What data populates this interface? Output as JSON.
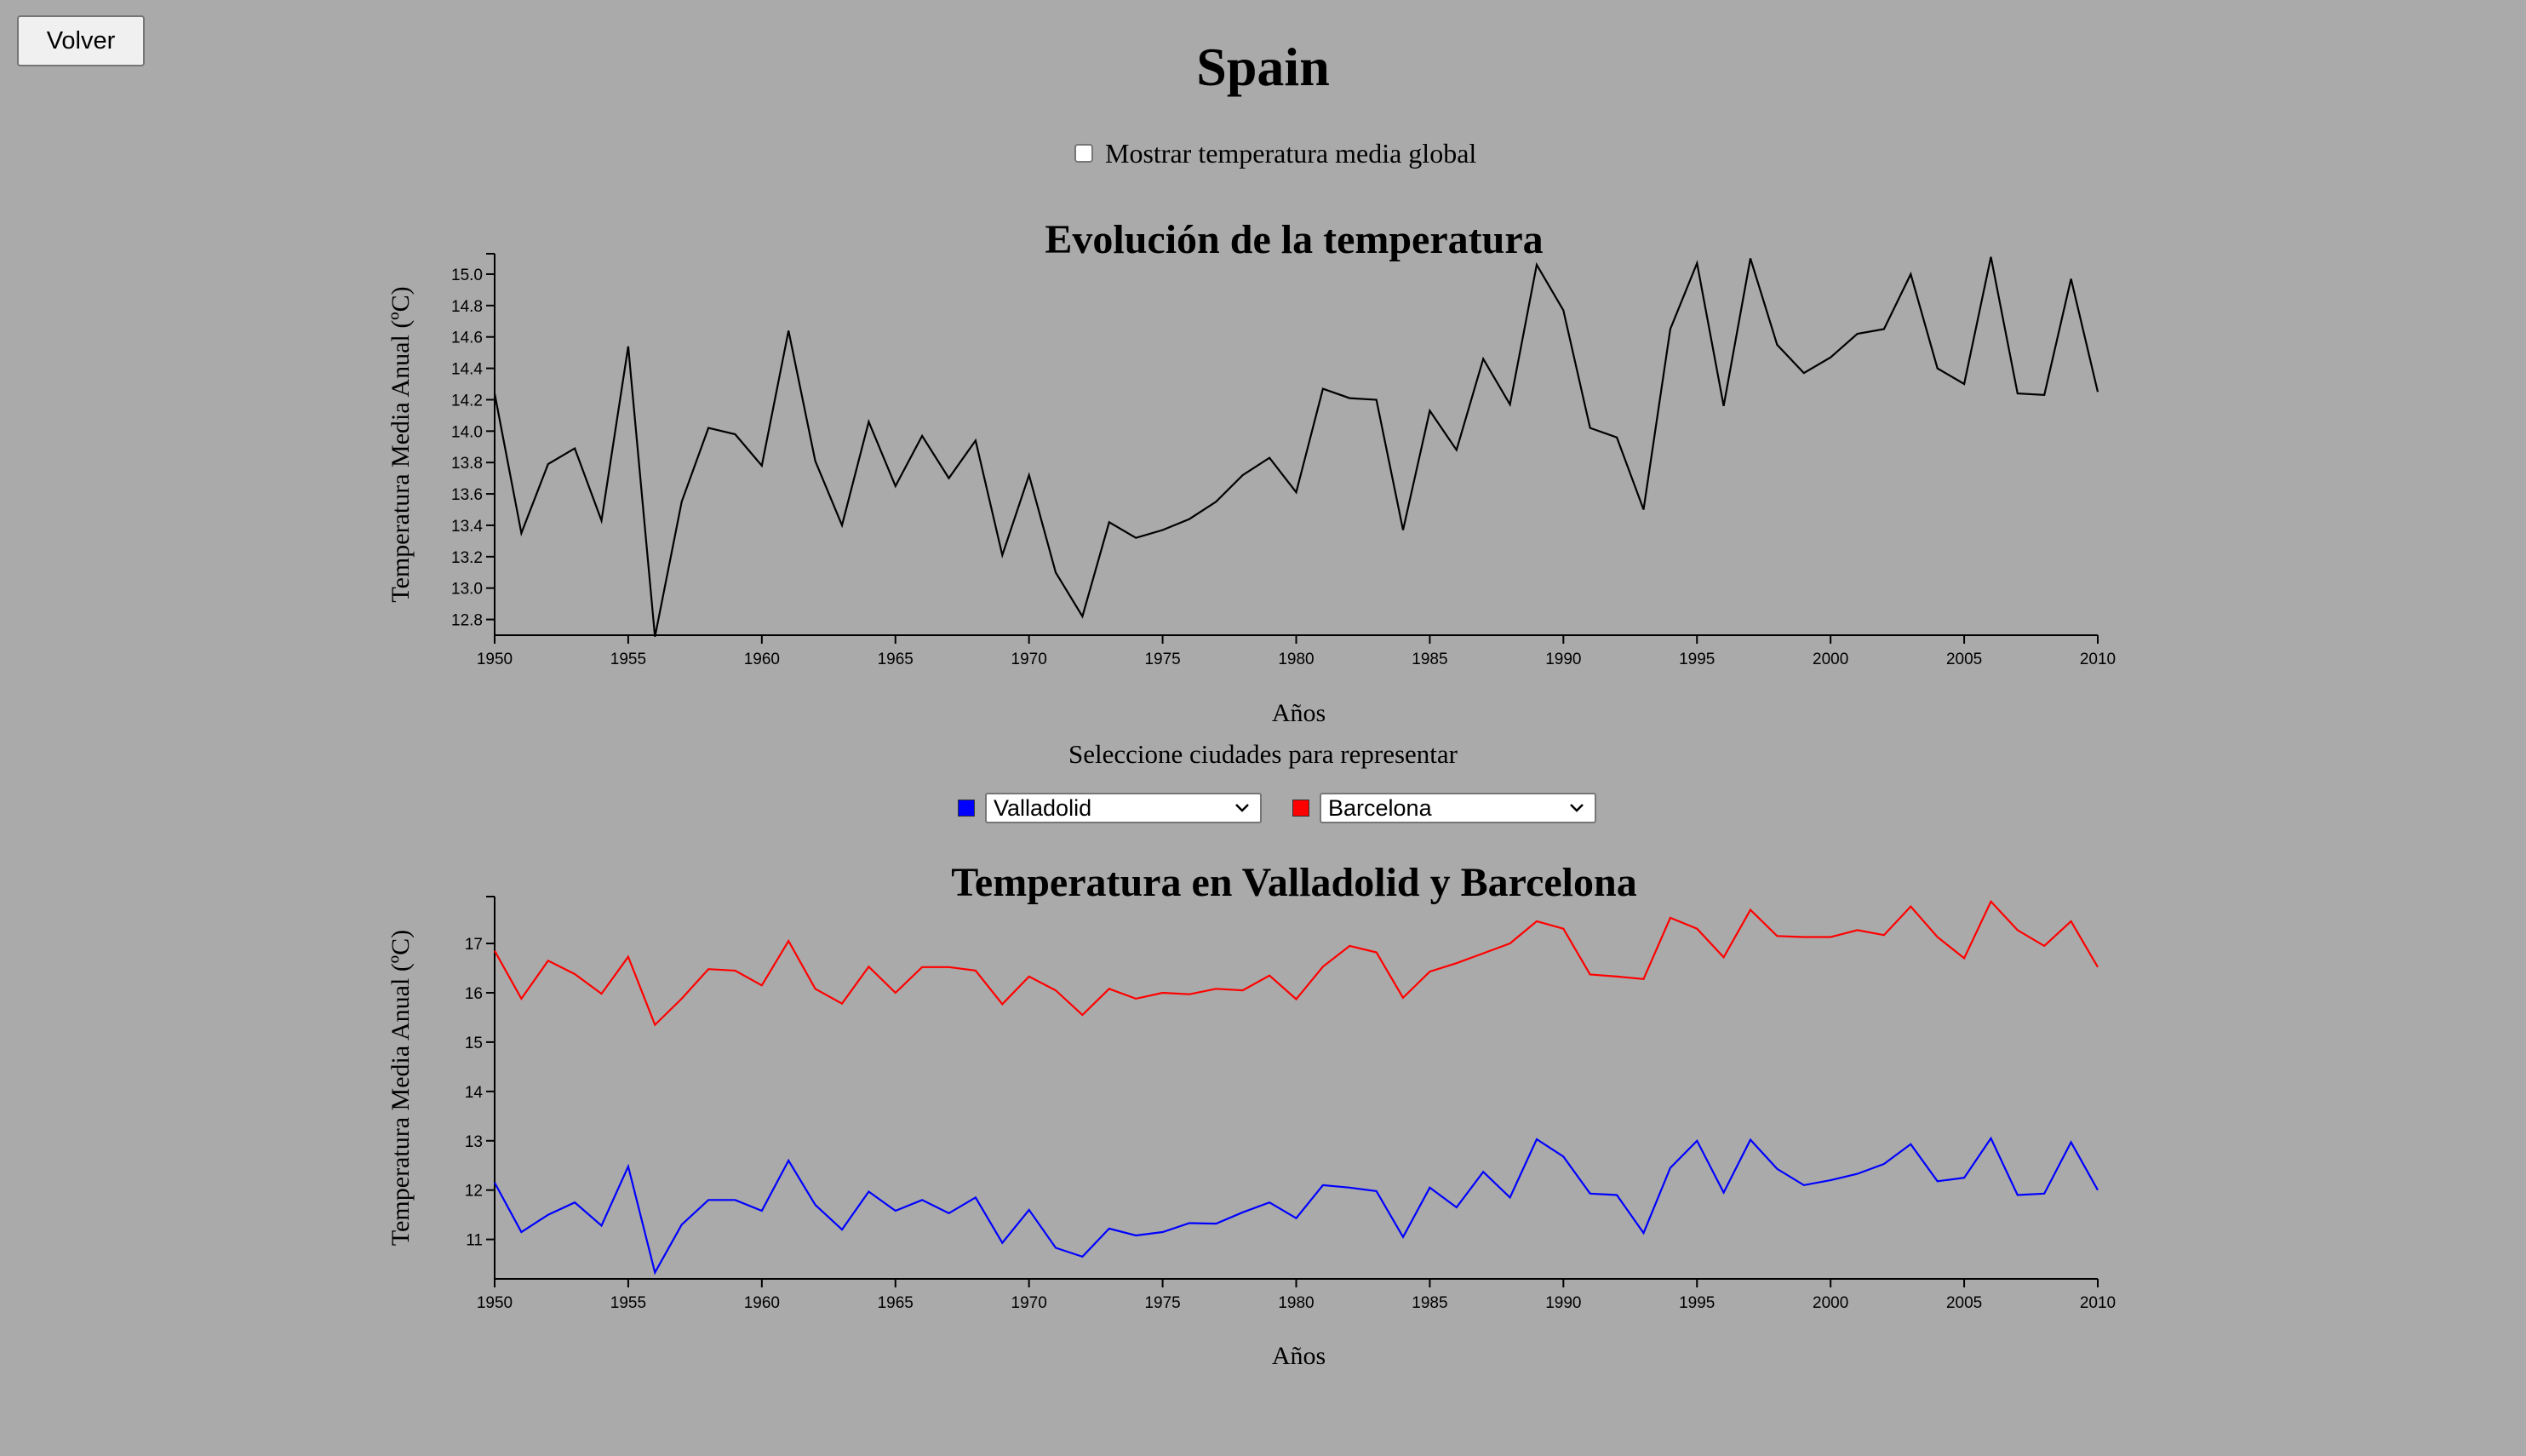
{
  "header": {
    "back_label": "Volver",
    "title": "Spain",
    "global_toggle_label": "Mostrar temperatura media global",
    "global_toggle_checked": false
  },
  "city_picker": {
    "prompt": "Seleccione ciudades para representar",
    "cities": [
      {
        "value": "Valladolid",
        "color": "#0000ff"
      },
      {
        "value": "Barcelona",
        "color": "#ff0000"
      }
    ]
  },
  "colors": {
    "background": "#aaaaaa",
    "country_line": "#000000"
  },
  "icons": {
    "select_arrow": "chevron-down-icon",
    "checkbox": "checkbox-icon"
  },
  "chart_data": [
    {
      "type": "line",
      "title": "Evolución de la temperatura",
      "xlabel": "Años",
      "ylabel": "Temperatura Media Anual (ºC)",
      "xlim": [
        1950,
        2010
      ],
      "ylim": [
        12.7,
        15.13
      ],
      "xticks": [
        1950,
        1955,
        1960,
        1965,
        1970,
        1975,
        1980,
        1985,
        1990,
        1995,
        2000,
        2005,
        2010
      ],
      "yticks": [
        12.8,
        13.0,
        13.2,
        13.4,
        13.6,
        13.8,
        14.0,
        14.2,
        14.4,
        14.6,
        14.8,
        15.0
      ],
      "ytick_decimals": 1,
      "x": [
        1950,
        1951,
        1952,
        1953,
        1954,
        1955,
        1956,
        1957,
        1958,
        1959,
        1960,
        1961,
        1962,
        1963,
        1964,
        1965,
        1966,
        1967,
        1968,
        1969,
        1970,
        1971,
        1972,
        1973,
        1974,
        1975,
        1976,
        1977,
        1978,
        1979,
        1980,
        1981,
        1982,
        1983,
        1984,
        1985,
        1986,
        1987,
        1988,
        1989,
        1990,
        1991,
        1992,
        1993,
        1994,
        1995,
        1996,
        1997,
        1998,
        1999,
        2000,
        2001,
        2002,
        2003,
        2004,
        2005,
        2006,
        2007,
        2008,
        2009,
        2010
      ],
      "series": [
        {
          "color": "#000000",
          "values": [
            14.24,
            13.35,
            13.79,
            13.89,
            13.43,
            14.54,
            12.69,
            13.55,
            14.02,
            13.98,
            13.78,
            14.64,
            13.81,
            13.4,
            14.06,
            13.65,
            13.97,
            13.7,
            13.94,
            13.21,
            13.72,
            13.1,
            12.82,
            13.42,
            13.32,
            13.37,
            13.44,
            13.55,
            13.72,
            13.83,
            13.61,
            14.27,
            14.21,
            14.2,
            13.37,
            14.13,
            13.88,
            14.46,
            14.17,
            15.06,
            14.77,
            14.02,
            13.96,
            13.5,
            14.65,
            15.07,
            14.16,
            15.1,
            14.55,
            14.37,
            14.47,
            14.62,
            14.65,
            15.0,
            14.4,
            14.3,
            15.11,
            14.24,
            14.23,
            14.97,
            14.25
          ]
        }
      ]
    },
    {
      "type": "line",
      "title": "Temperatura en Valladolid y Barcelona",
      "xlabel": "Años",
      "ylabel": "Temperatura Media Anual (ºC)",
      "xlim": [
        1950,
        2010
      ],
      "ylim": [
        10.2,
        17.95
      ],
      "xticks": [
        1950,
        1955,
        1960,
        1965,
        1970,
        1975,
        1980,
        1985,
        1990,
        1995,
        2000,
        2005,
        2010
      ],
      "yticks": [
        11,
        12,
        13,
        14,
        15,
        16,
        17
      ],
      "ytick_decimals": 0,
      "x": [
        1950,
        1951,
        1952,
        1953,
        1954,
        1955,
        1956,
        1957,
        1958,
        1959,
        1960,
        1961,
        1962,
        1963,
        1964,
        1965,
        1966,
        1967,
        1968,
        1969,
        1970,
        1971,
        1972,
        1973,
        1974,
        1975,
        1976,
        1977,
        1978,
        1979,
        1980,
        1981,
        1982,
        1983,
        1984,
        1985,
        1986,
        1987,
        1988,
        1989,
        1990,
        1991,
        1992,
        1993,
        1994,
        1995,
        1996,
        1997,
        1998,
        1999,
        2000,
        2001,
        2002,
        2003,
        2004,
        2005,
        2006,
        2007,
        2008,
        2009,
        2010
      ],
      "series": [
        {
          "name": "Valladolid",
          "color": "#0000ff",
          "values": [
            12.15,
            11.15,
            11.5,
            11.75,
            11.28,
            12.48,
            10.33,
            11.3,
            11.8,
            11.8,
            11.58,
            12.6,
            11.7,
            11.2,
            11.97,
            11.58,
            11.8,
            11.53,
            11.85,
            10.93,
            11.6,
            10.83,
            10.65,
            11.22,
            11.08,
            11.15,
            11.33,
            11.32,
            11.55,
            11.75,
            11.43,
            12.1,
            12.05,
            11.98,
            11.05,
            12.05,
            11.65,
            12.37,
            11.85,
            13.03,
            12.68,
            11.93,
            11.9,
            11.13,
            12.45,
            13.0,
            11.95,
            13.02,
            12.43,
            12.1,
            12.2,
            12.33,
            12.53,
            12.93,
            12.18,
            12.25,
            13.05,
            11.9,
            11.93,
            12.97,
            12.0
          ]
        },
        {
          "name": "Barcelona",
          "color": "#ff0000",
          "values": [
            16.85,
            15.88,
            16.65,
            16.38,
            15.98,
            16.73,
            15.35,
            15.88,
            16.48,
            16.45,
            16.15,
            17.05,
            16.08,
            15.78,
            16.53,
            16.0,
            16.52,
            16.52,
            16.45,
            15.77,
            16.33,
            16.05,
            15.55,
            16.08,
            15.88,
            16.0,
            15.97,
            16.08,
            16.05,
            16.35,
            15.87,
            16.53,
            16.95,
            16.82,
            15.9,
            16.43,
            16.6,
            16.8,
            17.0,
            17.45,
            17.3,
            16.37,
            16.33,
            16.28,
            17.52,
            17.3,
            16.72,
            17.68,
            17.15,
            17.13,
            17.13,
            17.27,
            17.17,
            17.75,
            17.13,
            16.7,
            17.85,
            17.27,
            16.95,
            17.45,
            16.52
          ]
        }
      ]
    }
  ]
}
